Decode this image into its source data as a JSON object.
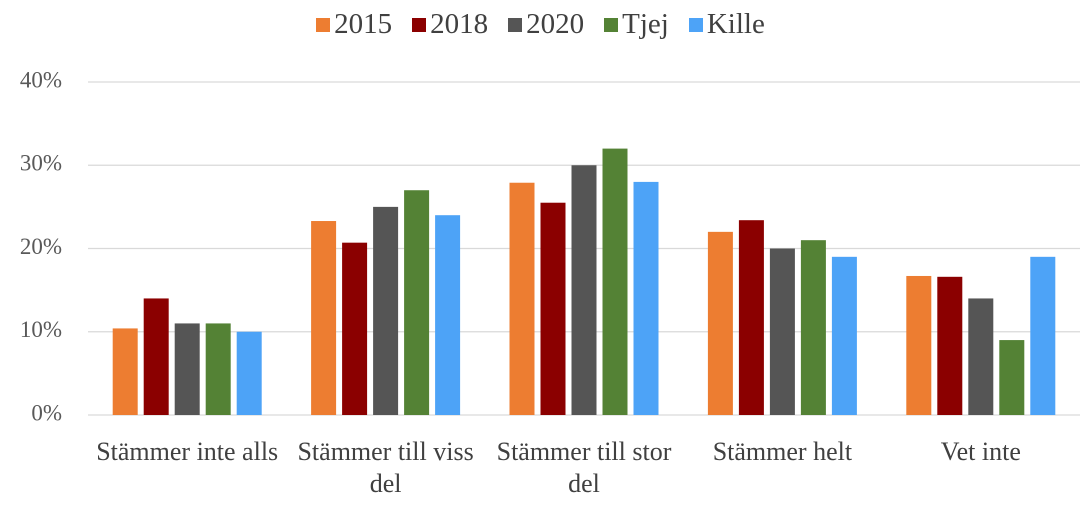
{
  "chart_data": {
    "type": "bar",
    "categories": [
      "Stämmer inte alls",
      "Stämmer till viss del",
      "Stämmer till stor del",
      "Stämmer helt",
      "Vet inte"
    ],
    "series": [
      {
        "name": "2015",
        "color": "#ed7d31",
        "values": [
          10.4,
          23.3,
          27.9,
          22,
          16.7
        ]
      },
      {
        "name": "2018",
        "color": "#8b0000",
        "values": [
          14,
          20.7,
          25.5,
          23.4,
          16.6
        ]
      },
      {
        "name": "2020",
        "color": "#555555",
        "values": [
          11,
          25,
          30,
          20,
          14
        ]
      },
      {
        "name": "Tjej",
        "color": "#548235",
        "values": [
          11,
          27,
          32,
          21,
          9
        ]
      },
      {
        "name": "Kille",
        "color": "#4da3f7",
        "values": [
          10,
          24,
          28,
          19,
          19
        ]
      }
    ],
    "ylim": [
      0,
      40
    ],
    "yticks": [
      {
        "value": 0,
        "label": "0%"
      },
      {
        "value": 10,
        "label": "10%"
      },
      {
        "value": 20,
        "label": "20%"
      },
      {
        "value": 30,
        "label": "30%"
      },
      {
        "value": 40,
        "label": "40%"
      }
    ],
    "grid": true,
    "legend": "top"
  }
}
